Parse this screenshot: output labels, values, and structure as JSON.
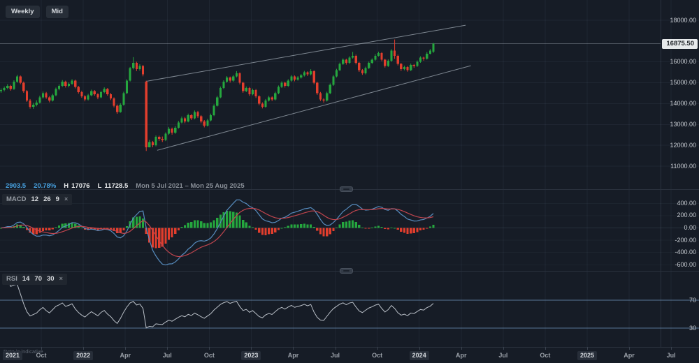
{
  "toolbar": {
    "timeframe_label": "Weekly",
    "price_type_label": "Mid"
  },
  "stats": {
    "change": "2903.5",
    "change_pct": "20.78%",
    "high_label": "H",
    "high_value": "17076",
    "low_label": "L",
    "low_value": "11728.5",
    "date_range": "Mon 5 Jul 2021 – Mon 25 Aug 2025"
  },
  "price_axis": {
    "current_price": "16875.50",
    "labels": [
      {
        "text": "18000.00",
        "value": 18000
      },
      {
        "text": "16000.00",
        "value": 16000
      },
      {
        "text": "15000.00",
        "value": 15000
      },
      {
        "text": "14000.00",
        "value": 14000
      },
      {
        "text": "13000.00",
        "value": 13000
      },
      {
        "text": "12000.00",
        "value": 12000
      },
      {
        "text": "11000.00",
        "value": 11000
      }
    ]
  },
  "macd_panel": {
    "title": "MACD",
    "params": [
      "12",
      "26",
      "9"
    ],
    "close_label": "×",
    "axis_labels": [
      {
        "text": "400.00",
        "value": 400
      },
      {
        "text": "200.00",
        "value": 200
      },
      {
        "text": "0.00",
        "value": 0
      },
      {
        "text": "-200.00",
        "value": -200
      },
      {
        "text": "-400.00",
        "value": -400
      },
      {
        "text": "-600.00",
        "value": -600
      }
    ]
  },
  "rsi_panel": {
    "title": "RSI",
    "params": [
      "14",
      "70",
      "30"
    ],
    "close_label": "×",
    "levels": [
      {
        "text": "70",
        "value": 70
      },
      {
        "text": "30",
        "value": 30
      }
    ]
  },
  "time_axis": {
    "ticks": [
      {
        "label": "2021",
        "type": "year"
      },
      {
        "label": "Oct",
        "type": "month"
      },
      {
        "label": "2022",
        "type": "year"
      },
      {
        "label": "Apr",
        "type": "month"
      },
      {
        "label": "Jul",
        "type": "month"
      },
      {
        "label": "Oct",
        "type": "month"
      },
      {
        "label": "2023",
        "type": "year"
      },
      {
        "label": "Apr",
        "type": "month"
      },
      {
        "label": "Jul",
        "type": "month"
      },
      {
        "label": "Oct",
        "type": "month"
      },
      {
        "label": "2024",
        "type": "year"
      },
      {
        "label": "Apr",
        "type": "month"
      },
      {
        "label": "Jul",
        "type": "month"
      },
      {
        "label": "Oct",
        "type": "month"
      },
      {
        "label": "2025",
        "type": "year"
      },
      {
        "label": "Apr",
        "type": "month"
      },
      {
        "label": "Jul",
        "type": "month"
      }
    ]
  },
  "footer": {
    "disclaimer": "Data is indicative"
  },
  "colors": {
    "background": "#161c26",
    "bull": "#25a73e",
    "bear": "#e23e2d",
    "macd_line": "#568bbd",
    "signal_line": "#c0454e",
    "rsi_line": "#b9bfc7",
    "rsi_levels": "#6f94bd",
    "channel": "#98a2ac",
    "grid": "#8fa5c0",
    "price_line": "#aeb6c0"
  },
  "chart_data": {
    "type": "candlestick",
    "timeframe": "Weekly",
    "price_type": "Mid",
    "visible_range": "Mon 5 Jul 2021 – Mon 25 Aug 2025",
    "y_axis": {
      "min": 11000,
      "max": 18000,
      "tick_step": 1000,
      "hidden_tick": 17000
    },
    "stats": {
      "change": 2903.5,
      "change_pct": 20.78,
      "high": 17076,
      "low": 11728.5,
      "current_price": 16875.5
    },
    "indicators": {
      "macd": {
        "fast": 12,
        "slow": 26,
        "signal": 9,
        "axis_range": [
          -600,
          400
        ]
      },
      "rsi": {
        "period": 14,
        "overbought": 70,
        "oversold": 30
      }
    },
    "trend_channel": {
      "upper": {
        "from_index": 45,
        "from_price": 15070,
        "to_index": 144,
        "to_price": 17760
      },
      "lower": {
        "from_index": 48.4,
        "from_price": 11760,
        "to_index": 145.6,
        "to_price": 15820
      }
    },
    "candles": [
      [
        14600,
        14730,
        14520,
        14650
      ],
      [
        14650,
        14820,
        14590,
        14750
      ],
      [
        14750,
        14930,
        14690,
        14850
      ],
      [
        14850,
        14900,
        14620,
        14700
      ],
      [
        14700,
        15120,
        14660,
        15050
      ],
      [
        15050,
        15380,
        15000,
        15300
      ],
      [
        15300,
        15350,
        14930,
        15000
      ],
      [
        15000,
        15060,
        14520,
        14600
      ],
      [
        14600,
        14650,
        14080,
        14150
      ],
      [
        14150,
        14220,
        13760,
        13850
      ],
      [
        13850,
        14040,
        13750,
        13950
      ],
      [
        13950,
        14160,
        13870,
        14050
      ],
      [
        14050,
        14380,
        14000,
        14300
      ],
      [
        14300,
        14580,
        14240,
        14500
      ],
      [
        14500,
        14560,
        14230,
        14300
      ],
      [
        14300,
        14360,
        14060,
        14150
      ],
      [
        14150,
        14470,
        14100,
        14400
      ],
      [
        14400,
        14770,
        14350,
        14700
      ],
      [
        14700,
        14920,
        14640,
        14850
      ],
      [
        14850,
        15130,
        14800,
        15050
      ],
      [
        15050,
        15100,
        14770,
        14850
      ],
      [
        14850,
        15020,
        14780,
        14950
      ],
      [
        14950,
        15170,
        14900,
        15100
      ],
      [
        15100,
        15150,
        14730,
        14800
      ],
      [
        14800,
        14850,
        14480,
        14550
      ],
      [
        14550,
        14620,
        14280,
        14350
      ],
      [
        14350,
        14410,
        14110,
        14200
      ],
      [
        14200,
        14470,
        14150,
        14400
      ],
      [
        14400,
        14670,
        14350,
        14600
      ],
      [
        14600,
        14650,
        14380,
        14450
      ],
      [
        14450,
        14500,
        14210,
        14300
      ],
      [
        14300,
        14620,
        14260,
        14550
      ],
      [
        14550,
        14780,
        14500,
        14700
      ],
      [
        14700,
        14750,
        14380,
        14450
      ],
      [
        14450,
        14510,
        14170,
        14250
      ],
      [
        14250,
        14300,
        13820,
        13900
      ],
      [
        13900,
        13960,
        13510,
        13600
      ],
      [
        13600,
        14020,
        13560,
        13950
      ],
      [
        13950,
        14570,
        13900,
        14500
      ],
      [
        14500,
        15170,
        14460,
        15100
      ],
      [
        15100,
        15760,
        15060,
        15700
      ],
      [
        15700,
        16230,
        15640,
        15950
      ],
      [
        15950,
        16010,
        15560,
        15650
      ],
      [
        15650,
        15890,
        15580,
        15800
      ],
      [
        15800,
        15850,
        15310,
        15400
      ],
      [
        15050,
        15100,
        11728.5,
        11900
      ],
      [
        11900,
        12260,
        11900,
        12150
      ],
      [
        12150,
        12210,
        11910,
        12000
      ],
      [
        12000,
        12470,
        11950,
        12400
      ],
      [
        12400,
        12460,
        12210,
        12300
      ],
      [
        12300,
        12420,
        12160,
        12250
      ],
      [
        12250,
        12620,
        12200,
        12550
      ],
      [
        12550,
        12880,
        12500,
        12800
      ],
      [
        12800,
        12850,
        12510,
        12600
      ],
      [
        12600,
        12920,
        12550,
        12850
      ],
      [
        12850,
        13170,
        12800,
        13100
      ],
      [
        13100,
        13380,
        13050,
        13300
      ],
      [
        13300,
        13360,
        13060,
        13150
      ],
      [
        13150,
        13520,
        13100,
        13450
      ],
      [
        13450,
        13500,
        13210,
        13300
      ],
      [
        13300,
        13670,
        13250,
        13600
      ],
      [
        13600,
        13650,
        13310,
        13400
      ],
      [
        13400,
        13450,
        13060,
        13150
      ],
      [
        13150,
        13210,
        12860,
        12950
      ],
      [
        12950,
        13270,
        12900,
        13200
      ],
      [
        13200,
        13520,
        13150,
        13450
      ],
      [
        13450,
        13970,
        13400,
        13900
      ],
      [
        13900,
        14370,
        13860,
        14300
      ],
      [
        14300,
        14820,
        14260,
        14750
      ],
      [
        14750,
        15120,
        14700,
        15050
      ],
      [
        15050,
        15320,
        15000,
        15250
      ],
      [
        15250,
        15300,
        15010,
        15100
      ],
      [
        15100,
        15370,
        15050,
        15300
      ],
      [
        15300,
        15560,
        15260,
        15450
      ],
      [
        15450,
        15500,
        14920,
        15000
      ],
      [
        15000,
        15050,
        14520,
        14600
      ],
      [
        14600,
        14820,
        14550,
        14750
      ],
      [
        14750,
        14800,
        14370,
        14450
      ],
      [
        14450,
        14720,
        14400,
        14650
      ],
      [
        14650,
        14700,
        14270,
        14350
      ],
      [
        14350,
        14400,
        13920,
        14000
      ],
      [
        14000,
        14060,
        13770,
        13850
      ],
      [
        13850,
        14220,
        13800,
        14150
      ],
      [
        14150,
        14370,
        14100,
        14300
      ],
      [
        14300,
        14350,
        14120,
        14200
      ],
      [
        14200,
        14570,
        14150,
        14500
      ],
      [
        14500,
        14870,
        14450,
        14800
      ],
      [
        14800,
        15070,
        14750,
        15000
      ],
      [
        15000,
        15050,
        14770,
        14850
      ],
      [
        14850,
        15170,
        14800,
        15100
      ],
      [
        15100,
        15370,
        15050,
        15300
      ],
      [
        15300,
        15350,
        15070,
        15150
      ],
      [
        15150,
        15320,
        15100,
        15250
      ],
      [
        15250,
        15420,
        15200,
        15350
      ],
      [
        15350,
        15570,
        15300,
        15500
      ],
      [
        15500,
        15550,
        15320,
        15400
      ],
      [
        15400,
        15650,
        15350,
        15550
      ],
      [
        15550,
        15600,
        14930,
        15000
      ],
      [
        15000,
        15050,
        14420,
        14500
      ],
      [
        14500,
        14560,
        14130,
        14200
      ],
      [
        14200,
        14260,
        14050,
        14150
      ],
      [
        14150,
        14570,
        14100,
        14500
      ],
      [
        14500,
        14970,
        14450,
        14900
      ],
      [
        14900,
        15370,
        14850,
        15300
      ],
      [
        15300,
        15670,
        15260,
        15600
      ],
      [
        15600,
        15970,
        15560,
        15900
      ],
      [
        15900,
        16170,
        15860,
        16100
      ],
      [
        16100,
        16150,
        15870,
        15950
      ],
      [
        15950,
        16270,
        15900,
        16200
      ],
      [
        16200,
        16480,
        16160,
        16300
      ],
      [
        16300,
        16350,
        15880,
        15950
      ],
      [
        15950,
        16000,
        15520,
        15600
      ],
      [
        15600,
        15660,
        15380,
        15450
      ],
      [
        15450,
        15770,
        15400,
        15700
      ],
      [
        15700,
        16020,
        15660,
        15950
      ],
      [
        15950,
        16170,
        15900,
        16100
      ],
      [
        16100,
        16370,
        16060,
        16300
      ],
      [
        16300,
        16490,
        16260,
        16420
      ],
      [
        16420,
        16470,
        16030,
        16100
      ],
      [
        16100,
        16150,
        15730,
        15800
      ],
      [
        15800,
        16120,
        15760,
        16050
      ],
      [
        16050,
        16610,
        16000,
        16550
      ],
      [
        16550,
        17076,
        16150,
        16300
      ],
      [
        16300,
        16350,
        15830,
        15900
      ],
      [
        15900,
        15950,
        15570,
        15650
      ],
      [
        15650,
        15820,
        15600,
        15750
      ],
      [
        15750,
        15800,
        15530,
        15600
      ],
      [
        15600,
        15920,
        15560,
        15850
      ],
      [
        15850,
        15900,
        15720,
        15800
      ],
      [
        15800,
        16070,
        15760,
        16000
      ],
      [
        16000,
        16270,
        15960,
        16200
      ],
      [
        16200,
        16250,
        16060,
        16150
      ],
      [
        16150,
        16470,
        16110,
        16400
      ],
      [
        16400,
        16620,
        16360,
        16550
      ],
      [
        16500,
        16910,
        16430,
        16875.5
      ]
    ]
  }
}
